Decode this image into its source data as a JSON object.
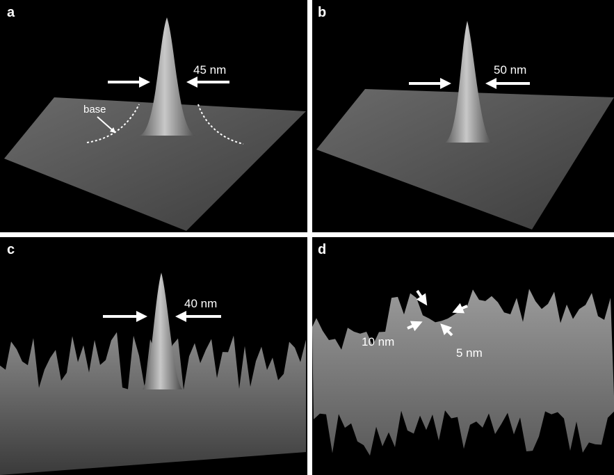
{
  "panels": [
    {
      "label": "a",
      "annotations": [
        "45 nm",
        "base"
      ]
    },
    {
      "label": "b",
      "annotations": [
        "50 nm"
      ]
    },
    {
      "label": "c",
      "annotations": [
        "40 nm"
      ]
    },
    {
      "label": "d",
      "annotations": [
        "10 nm",
        "5 nm"
      ]
    }
  ]
}
